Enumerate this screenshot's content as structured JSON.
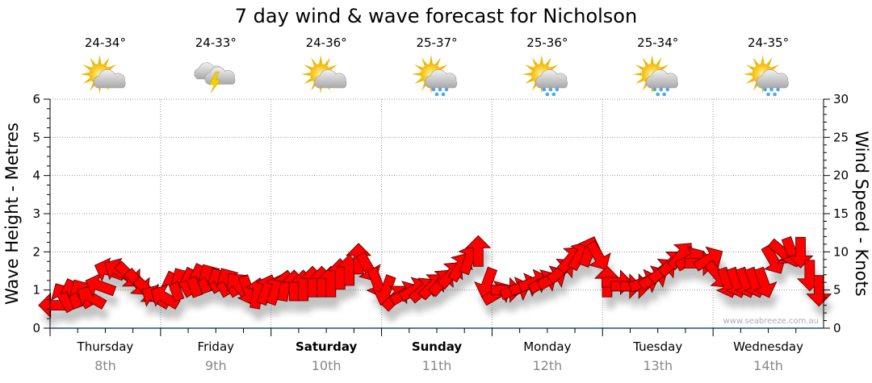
{
  "chart_data": {
    "type": "scatter",
    "title": "7 day wind & wave forecast for Nicholson",
    "ylabel_left": "Wave Height - Metres",
    "ylabel_right": "Wind Speed - Knots",
    "ylim_left": [
      0,
      6
    ],
    "ylim_right": [
      0,
      30
    ],
    "yticks_left": [
      "0",
      "1",
      "2",
      "3",
      "4",
      "5",
      "6"
    ],
    "yticks_right": [
      "0",
      "5",
      "10",
      "15",
      "20",
      "25",
      "30"
    ],
    "grid": true,
    "watermark": "www.seabreeze.com.au",
    "days": [
      {
        "name": "Thursday",
        "date": "8th",
        "temp": "24-34°",
        "icon": "partly-cloudy",
        "bold": false
      },
      {
        "name": "Friday",
        "date": "9th",
        "temp": "24-33°",
        "icon": "thunderstorm",
        "bold": false
      },
      {
        "name": "Saturday",
        "date": "10th",
        "temp": "24-36°",
        "icon": "partly-cloudy",
        "bold": true
      },
      {
        "name": "Sunday",
        "date": "11th",
        "temp": "25-37°",
        "icon": "sun-showers",
        "bold": true
      },
      {
        "name": "Monday",
        "date": "12th",
        "temp": "25-36°",
        "icon": "sun-showers",
        "bold": false
      },
      {
        "name": "Tuesday",
        "date": "13th",
        "temp": "25-34°",
        "icon": "sun-showers",
        "bold": false
      },
      {
        "name": "Wednesday",
        "date": "14th",
        "temp": "24-35°",
        "icon": "sun-showers",
        "bold": false
      }
    ],
    "wind_series": {
      "name": "Wind (knots, direction arrow points toward, degrees)",
      "interval_hours": 2,
      "knots": [
        3,
        4,
        4.5,
        4.5,
        4,
        5.5,
        7.5,
        7.5,
        7,
        6,
        5,
        4,
        4,
        5.5,
        6,
        6,
        6.5,
        6.5,
        6,
        6,
        5.5,
        5,
        4.5,
        5,
        5,
        5.5,
        5.5,
        5.5,
        6,
        6,
        6,
        7,
        7.5,
        9,
        8,
        6,
        5,
        4,
        4.5,
        5,
        5,
        5.5,
        6,
        7,
        8,
        9,
        10,
        6,
        4.5,
        5,
        5,
        5.5,
        6,
        6,
        6.5,
        7.5,
        9,
        9.5,
        10,
        9.5,
        6,
        6,
        5.5,
        5.5,
        6,
        6.5,
        7.5,
        8.5,
        9.5,
        9,
        8.5,
        9,
        7,
        6,
        6,
        6,
        6,
        6,
        9,
        10,
        10,
        10,
        7,
        5
      ],
      "direction": [
        270,
        330,
        340,
        330,
        300,
        290,
        290,
        300,
        135,
        140,
        135,
        300,
        300,
        340,
        330,
        340,
        340,
        330,
        330,
        330,
        320,
        160,
        10,
        20,
        20,
        10,
        0,
        0,
        0,
        0,
        0,
        0,
        0,
        0,
        150,
        160,
        200,
        45,
        60,
        60,
        50,
        45,
        40,
        40,
        30,
        20,
        0,
        200,
        60,
        90,
        70,
        70,
        70,
        60,
        60,
        50,
        40,
        30,
        20,
        150,
        0,
        90,
        90,
        90,
        70,
        60,
        50,
        45,
        40,
        60,
        90,
        60,
        140,
        160,
        160,
        160,
        160,
        160,
        150,
        130,
        160,
        180,
        180,
        180
      ]
    },
    "colors": {
      "arrow": "#ff0000",
      "arrow_stroke": "#4a0000",
      "axis": "#1f4e79",
      "grid": "#999999",
      "date": "#888888"
    }
  }
}
